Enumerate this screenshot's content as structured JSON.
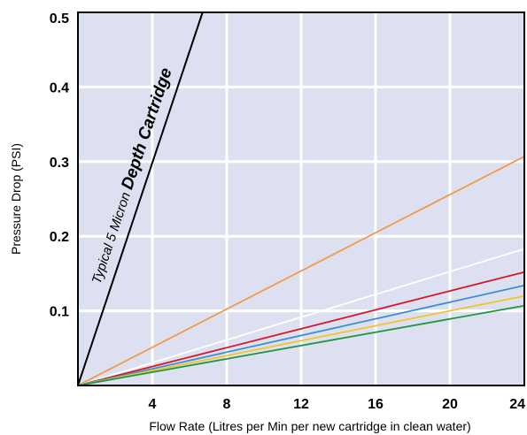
{
  "chart_data": {
    "type": "line",
    "title": "",
    "xlabel": "Flow Rate (Litres per Min per new cartridge in clean water)",
    "ylabel": "Pressure Drop (PSI)",
    "xlim": [
      0,
      24
    ],
    "ylim": [
      0,
      0.5
    ],
    "xticks": [
      {
        "value": 4,
        "label": "4"
      },
      {
        "value": 8,
        "label": "8"
      },
      {
        "value": 12,
        "label": "12"
      },
      {
        "value": 16,
        "label": "16"
      },
      {
        "value": 20,
        "label": "20"
      },
      {
        "value": 24,
        "label": "24"
      }
    ],
    "yticks": [
      {
        "value": 0.1,
        "label": "0.1"
      },
      {
        "value": 0.2,
        "label": "0.2"
      },
      {
        "value": 0.3,
        "label": "0.3"
      },
      {
        "value": 0.4,
        "label": "0.4"
      },
      {
        "value": 0.5,
        "label": "0.5"
      }
    ],
    "grid": true,
    "background_color": "#dde0f0",
    "grid_color": "#ffffff",
    "annotation": {
      "prefix": "Typical 5 Micron ",
      "emphasis": "Depth Cartridge"
    },
    "series": [
      {
        "color": "#000000",
        "x": [
          0,
          6.7
        ],
        "y": [
          0,
          0.5
        ]
      },
      {
        "color": "#f2994a",
        "x": [
          0,
          24
        ],
        "y": [
          0,
          0.307
        ]
      },
      {
        "color": "#ffffff",
        "x": [
          0,
          24
        ],
        "y": [
          0,
          0.183
        ]
      },
      {
        "color": "#d7182a",
        "x": [
          0,
          24
        ],
        "y": [
          0,
          0.152
        ]
      },
      {
        "color": "#3a8fd0",
        "x": [
          0,
          24
        ],
        "y": [
          0,
          0.134
        ]
      },
      {
        "color": "#f2c428",
        "x": [
          0,
          24
        ],
        "y": [
          0,
          0.12
        ]
      },
      {
        "color": "#1e9640",
        "x": [
          0,
          24
        ],
        "y": [
          0,
          0.107
        ]
      }
    ]
  }
}
